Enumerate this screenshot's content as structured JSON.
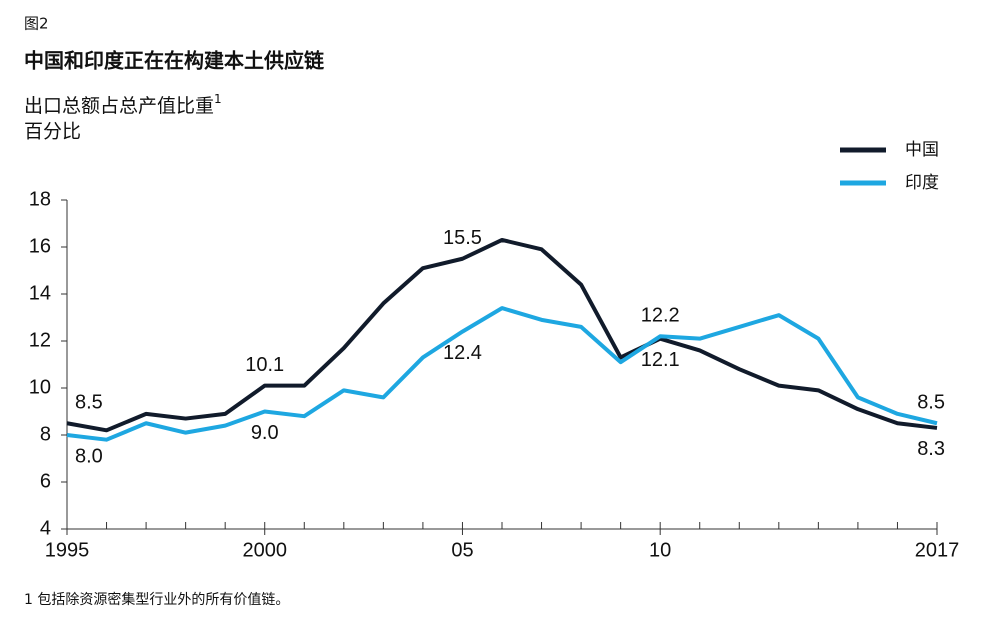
{
  "chart_data": {
    "type": "line",
    "figure_label": "图2",
    "title": "中国和印度正在在构建本土供应链",
    "subtitle": "出口总额占总产值比重",
    "subtitle_sup": "1",
    "unit_label": "百分比",
    "footnote": "1 包括除资源密集型行业外的所有价值链。",
    "x": [
      1995,
      1996,
      1997,
      1998,
      1999,
      2000,
      2001,
      2002,
      2003,
      2004,
      2005,
      2006,
      2007,
      2008,
      2009,
      2010,
      2011,
      2012,
      2013,
      2014,
      2015,
      2016,
      2017
    ],
    "series": [
      {
        "name": "中国",
        "color": "#111b2b",
        "values": [
          8.5,
          8.2,
          8.9,
          8.7,
          8.9,
          10.1,
          10.1,
          11.7,
          13.6,
          15.1,
          15.5,
          16.3,
          15.9,
          14.4,
          11.3,
          12.1,
          11.6,
          10.8,
          10.1,
          9.9,
          9.1,
          8.5,
          8.3
        ],
        "value_labels": [
          "8.5",
          null,
          null,
          null,
          null,
          "10.1",
          null,
          null,
          null,
          null,
          "15.5",
          null,
          null,
          null,
          null,
          "12.1",
          null,
          null,
          null,
          null,
          null,
          null,
          "8.3"
        ]
      },
      {
        "name": "印度",
        "color": "#1ea7e1",
        "values": [
          8.0,
          7.8,
          8.5,
          8.1,
          8.4,
          9.0,
          8.8,
          9.9,
          9.6,
          11.3,
          12.4,
          13.4,
          12.9,
          12.6,
          11.1,
          12.2,
          12.1,
          12.6,
          13.1,
          12.1,
          9.6,
          8.9,
          8.5
        ],
        "value_labels": [
          "8.0",
          null,
          null,
          null,
          null,
          "9.0",
          null,
          null,
          null,
          null,
          "12.4",
          null,
          null,
          null,
          null,
          "12.2",
          null,
          null,
          null,
          null,
          null,
          null,
          "8.5"
        ]
      }
    ],
    "xlim": [
      1995,
      2017
    ],
    "xticks": [
      1995,
      2000,
      {
        "value": 2005,
        "label": "05"
      },
      {
        "value": 2010,
        "label": "10"
      },
      2017
    ],
    "ylim": [
      4,
      18
    ],
    "yticks": [
      4,
      6,
      8,
      10,
      12,
      14,
      16,
      18
    ],
    "grid": false,
    "legend": "top-right"
  }
}
